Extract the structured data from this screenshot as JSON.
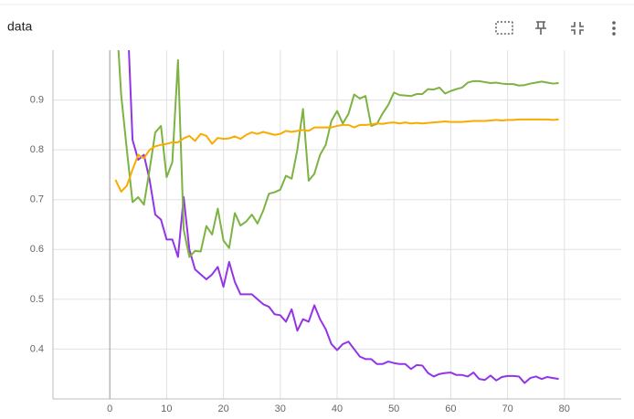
{
  "chart_data": {
    "type": "line",
    "title": "data",
    "x": [
      1,
      2,
      3,
      4,
      5,
      6,
      7,
      8,
      9,
      10,
      11,
      12,
      13,
      14,
      15,
      16,
      17,
      18,
      19,
      20,
      21,
      22,
      23,
      24,
      25,
      26,
      27,
      28,
      29,
      30,
      31,
      32,
      33,
      34,
      35,
      36,
      37,
      38,
      39,
      40,
      41,
      42,
      43,
      44,
      45,
      46,
      47,
      48,
      49,
      50,
      51,
      52,
      53,
      54,
      55,
      56,
      57,
      58,
      59,
      60,
      61,
      62,
      63,
      64,
      65,
      66,
      67,
      68,
      69,
      70,
      71,
      72,
      73,
      74,
      75,
      76,
      77,
      78,
      79
    ],
    "series": [
      {
        "color": "#9334e6",
        "values": [
          null,
          null,
          1.1,
          0.82,
          0.78,
          0.79,
          0.74,
          0.67,
          0.66,
          0.62,
          0.62,
          0.585,
          0.705,
          0.6,
          0.56,
          0.55,
          0.54,
          0.55,
          0.565,
          0.525,
          0.575,
          0.535,
          0.51,
          0.51,
          0.51,
          0.5,
          0.49,
          0.485,
          0.47,
          0.468,
          0.455,
          0.48,
          0.437,
          0.46,
          0.455,
          0.488,
          0.46,
          0.44,
          0.41,
          0.398,
          0.41,
          0.415,
          0.4,
          0.385,
          0.38,
          0.38,
          0.37,
          0.37,
          0.375,
          0.372,
          0.37,
          0.37,
          0.36,
          0.368,
          0.367,
          0.352,
          0.345,
          0.35,
          0.352,
          0.353,
          0.348,
          0.348,
          0.345,
          0.353,
          0.34,
          0.338,
          0.347,
          0.337,
          0.344,
          0.346,
          0.346,
          0.345,
          0.332,
          0.342,
          0.345,
          0.34,
          0.344,
          0.342,
          0.34
        ]
      },
      {
        "color": "#7cb342",
        "values": [
          1.1,
          0.91,
          0.8,
          0.695,
          0.705,
          0.69,
          0.76,
          0.835,
          0.848,
          0.745,
          0.775,
          0.98,
          0.64,
          0.585,
          0.597,
          0.596,
          0.647,
          0.63,
          0.682,
          0.618,
          0.603,
          0.673,
          0.648,
          0.656,
          0.67,
          0.652,
          0.678,
          0.712,
          0.715,
          0.72,
          0.748,
          0.742,
          0.8,
          0.882,
          0.738,
          0.752,
          0.79,
          0.81,
          0.858,
          0.878,
          0.853,
          0.872,
          0.911,
          0.903,
          0.908,
          0.848,
          0.852,
          0.873,
          0.89,
          0.915,
          0.91,
          0.909,
          0.908,
          0.912,
          0.912,
          0.922,
          0.921,
          0.925,
          0.913,
          0.918,
          0.922,
          0.925,
          0.935,
          0.938,
          0.938,
          0.936,
          0.934,
          0.935,
          0.933,
          0.932,
          0.932,
          0.929,
          0.93,
          0.933,
          0.935,
          0.937,
          0.935,
          0.933,
          0.934
        ]
      },
      {
        "color": "#f9ab00",
        "values": [
          0.74,
          0.716,
          0.728,
          0.76,
          0.79,
          0.783,
          0.8,
          0.807,
          0.81,
          0.812,
          0.815,
          0.815,
          0.823,
          0.828,
          0.818,
          0.832,
          0.828,
          0.812,
          0.824,
          0.822,
          0.823,
          0.827,
          0.822,
          0.83,
          0.835,
          0.832,
          0.836,
          0.833,
          0.83,
          0.832,
          0.838,
          0.836,
          0.838,
          0.84,
          0.838,
          0.845,
          0.845,
          0.845,
          0.845,
          0.848,
          0.85,
          0.85,
          0.845,
          0.85,
          0.85,
          0.851,
          0.853,
          0.852,
          0.854,
          0.855,
          0.853,
          0.855,
          0.853,
          0.854,
          0.853,
          0.854,
          0.855,
          0.856,
          0.857,
          0.856,
          0.856,
          0.856,
          0.857,
          0.858,
          0.858,
          0.858,
          0.859,
          0.86,
          0.859,
          0.86,
          0.86,
          0.861,
          0.861,
          0.861,
          0.861,
          0.861,
          0.861,
          0.86,
          0.861
        ]
      }
    ],
    "xlim": [
      -10,
      90
    ],
    "ylim": [
      0.3,
      1.0
    ],
    "xticks": [
      0,
      10,
      20,
      30,
      40,
      50,
      60,
      70,
      80
    ],
    "yticks": [
      0.4,
      0.5,
      0.6,
      0.7,
      0.8,
      0.9
    ],
    "grid": true
  }
}
